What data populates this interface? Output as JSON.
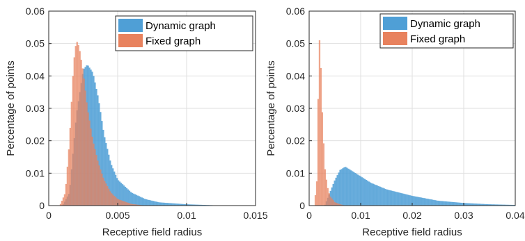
{
  "chart_data": [
    {
      "type": "histogram",
      "xlabel": "Receptive field radius",
      "ylabel": "Percentage of points",
      "xlim": [
        0,
        0.015
      ],
      "ylim": [
        0,
        0.06
      ],
      "xticks": [
        "0",
        "0.005",
        "0.01",
        "0.015"
      ],
      "yticks": [
        "0",
        "0.01",
        "0.02",
        "0.03",
        "0.04",
        "0.05",
        "0.06"
      ],
      "grid": true,
      "legend_position": "top-right",
      "series": [
        {
          "name": "Dynamic graph",
          "color": "#4f9fd6",
          "x": [
            0.001,
            0.0015,
            0.002,
            0.0025,
            0.0028,
            0.0032,
            0.0036,
            0.004,
            0.0045,
            0.005,
            0.006,
            0.007,
            0.008,
            0.01,
            0.012,
            0.015
          ],
          "y": [
            0.0,
            0.004,
            0.028,
            0.042,
            0.0435,
            0.041,
            0.033,
            0.022,
            0.013,
            0.008,
            0.004,
            0.002,
            0.001,
            0.0004,
            0.0001,
            0.0
          ]
        },
        {
          "name": "Fixed graph",
          "color": "#e8825e",
          "x": [
            0.0008,
            0.0012,
            0.0015,
            0.0018,
            0.002,
            0.0022,
            0.0025,
            0.0028,
            0.0032,
            0.0036,
            0.004,
            0.0045,
            0.005,
            0.006,
            0.007
          ],
          "y": [
            0.0,
            0.004,
            0.02,
            0.044,
            0.051,
            0.049,
            0.041,
            0.03,
            0.02,
            0.013,
            0.008,
            0.004,
            0.002,
            0.0005,
            0.0
          ]
        }
      ]
    },
    {
      "type": "histogram",
      "xlabel": "Receptive field radius",
      "ylabel": "Percentage of points",
      "xlim": [
        0,
        0.04
      ],
      "ylim": [
        0,
        0.06
      ],
      "xticks": [
        "0",
        "0.01",
        "0.02",
        "0.03",
        "0.04"
      ],
      "yticks": [
        "0",
        "0.01",
        "0.02",
        "0.03",
        "0.04",
        "0.05",
        "0.06"
      ],
      "grid": true,
      "legend_position": "top-right",
      "series": [
        {
          "name": "Dynamic graph",
          "color": "#4f9fd6",
          "x": [
            0.003,
            0.004,
            0.005,
            0.006,
            0.007,
            0.008,
            0.01,
            0.012,
            0.015,
            0.02,
            0.025,
            0.03,
            0.035,
            0.04
          ],
          "y": [
            0.0,
            0.004,
            0.008,
            0.011,
            0.012,
            0.011,
            0.009,
            0.007,
            0.005,
            0.003,
            0.0015,
            0.0008,
            0.0004,
            0.0002
          ]
        },
        {
          "name": "Fixed graph",
          "color": "#e8825e",
          "x": [
            0.001,
            0.0015,
            0.0018,
            0.002,
            0.0022,
            0.0025,
            0.003,
            0.0035,
            0.004,
            0.005,
            0.006,
            0.007
          ],
          "y": [
            0.0,
            0.008,
            0.04,
            0.051,
            0.046,
            0.03,
            0.012,
            0.006,
            0.003,
            0.001,
            0.0004,
            0.0
          ]
        }
      ]
    }
  ]
}
